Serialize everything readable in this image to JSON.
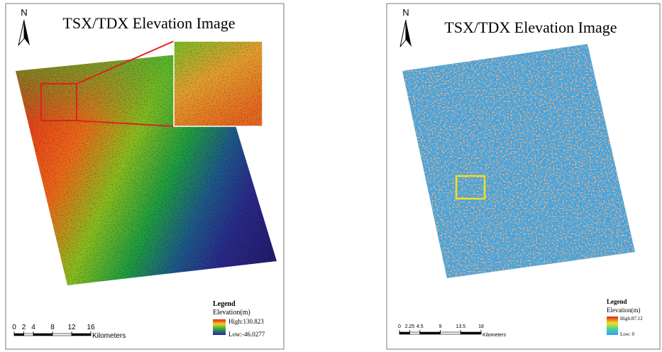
{
  "panels": [
    {
      "title": "TSX/TDX Elevation Image",
      "north": "N",
      "legend": {
        "title": "Legend",
        "field": "Elevation(m)",
        "high": "High:130.823",
        "low": "Low:-46.0277"
      },
      "scale": {
        "ticks": [
          0,
          2,
          4,
          8,
          12,
          16
        ],
        "unit": "Kilometers"
      }
    },
    {
      "title": "TSX/TDX Elevation Image",
      "north": "N",
      "legend": {
        "title": "Legend",
        "field": "Elevation(m)",
        "high": "High:87.12",
        "low": "Low: 0"
      },
      "scale": {
        "ticks": [
          0,
          2.25,
          4.5,
          9,
          13.5,
          18
        ],
        "unit": "Kilometers"
      }
    }
  ]
}
